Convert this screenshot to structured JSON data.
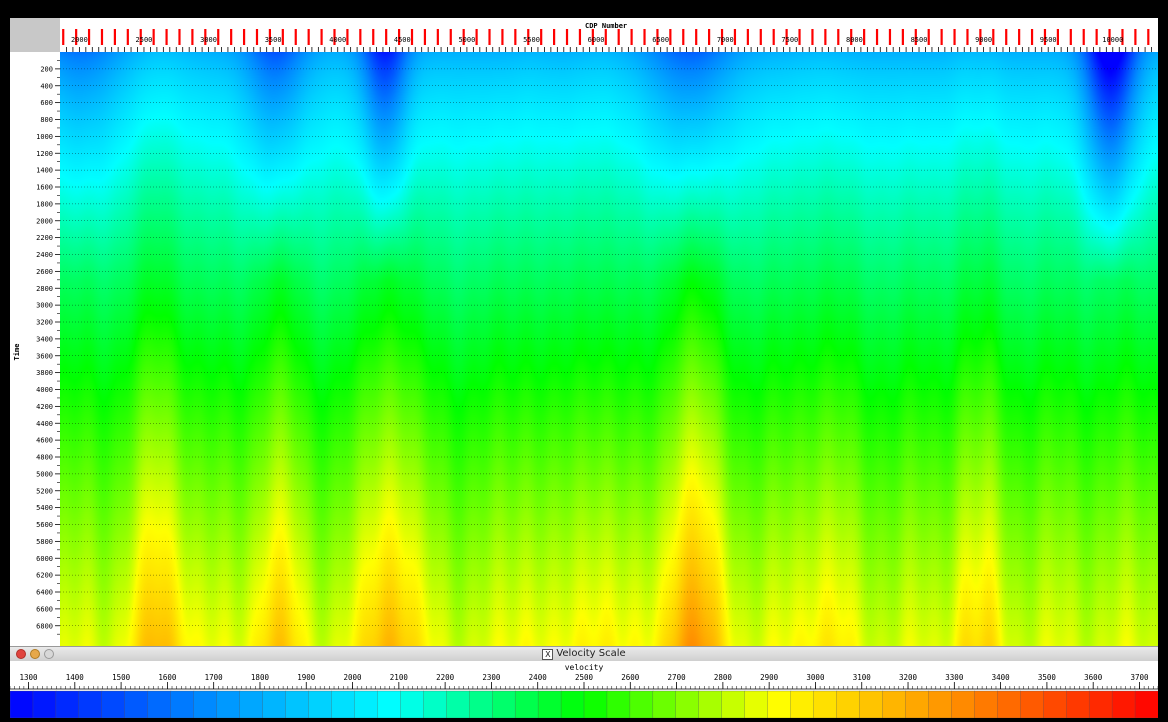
{
  "main_window": {
    "x_axis": {
      "title": "CDP Number",
      "min": 1850,
      "max": 10350,
      "labels": [
        2000,
        2500,
        3000,
        3500,
        4000,
        4500,
        5000,
        5500,
        6000,
        6500,
        7000,
        7500,
        8000,
        8500,
        9000,
        9500,
        10000
      ],
      "marker_color": "#ff0000"
    },
    "y_axis": {
      "title": "Time",
      "min": 0,
      "max": 7040,
      "labels": [
        200,
        400,
        600,
        800,
        1000,
        1200,
        1400,
        1600,
        1800,
        2000,
        2200,
        2400,
        2600,
        2800,
        3000,
        3200,
        3400,
        3600,
        3800,
        4000,
        4200,
        4400,
        4600,
        4800,
        5000,
        5200,
        5400,
        5600,
        5800,
        6000,
        6200,
        6400,
        6600,
        6800
      ]
    }
  },
  "scale_window": {
    "title": "Velocity Scale",
    "axis_title": "velocity",
    "axis_min": 1260,
    "axis_max": 3740,
    "labels": [
      1300,
      1400,
      1500,
      1600,
      1700,
      1800,
      1900,
      2000,
      2100,
      2200,
      2300,
      2400,
      2500,
      2600,
      2700,
      2800,
      2900,
      3000,
      3100,
      3200,
      3300,
      3400,
      3500,
      3600,
      3700
    ],
    "colormap": [
      "#0000ff",
      "#0088ff",
      "#00ffff",
      "#00ff00",
      "#ffff00",
      "#ff8800",
      "#ff0000"
    ]
  }
}
